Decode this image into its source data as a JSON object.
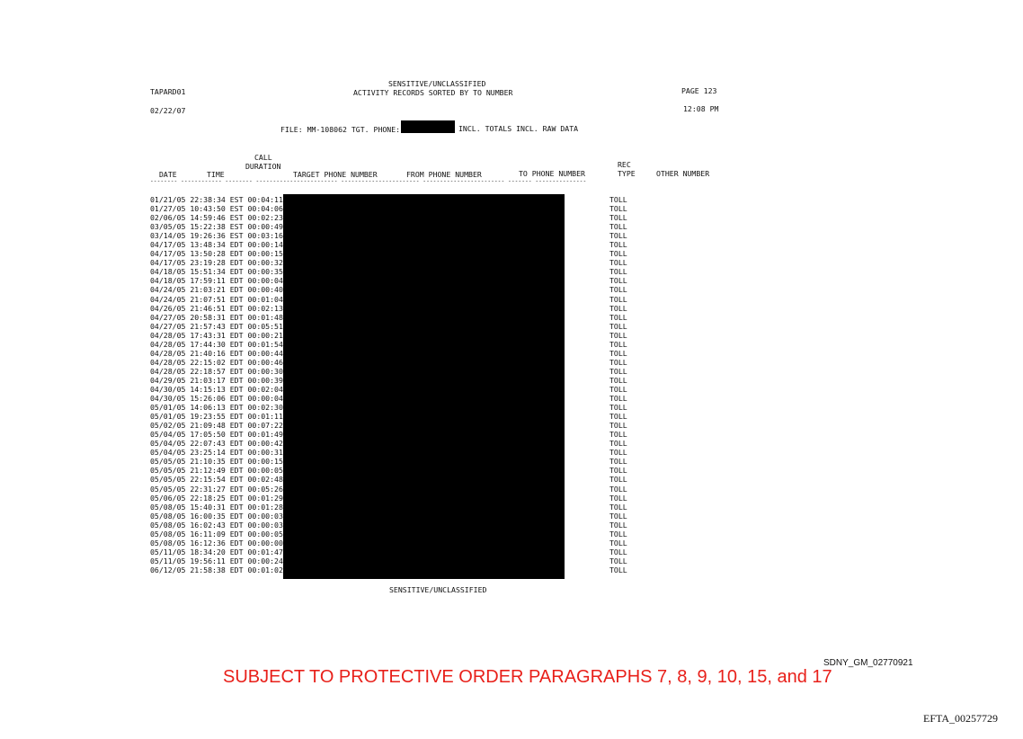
{
  "header": {
    "program_id": "TAPARD01",
    "classification": "SENSITIVE/UNCLASSIFIED",
    "report_title": "ACTIVITY RECORDS SORTED BY TO NUMBER",
    "page": "PAGE 123",
    "date": "02/22/07",
    "time": "12:08 PM",
    "file_label": "FILE: MM-108062 TGT. PHONE:",
    "file_suffix": "INCL. TOTALS INCL. RAW DATA"
  },
  "columns": {
    "date": "DATE",
    "time": "TIME",
    "call": "CALL",
    "duration": "DURATION",
    "target": "TARGET PHONE NUMBER",
    "from": "FROM PHONE NUMBER",
    "to": "TO PHONE NUMBER",
    "rec": "REC",
    "type": "TYPE",
    "other": "OTHER NUMBER",
    "divider": "-------- ------------ -------- ------------------------ ----------------------- ------------------------ ------- ---------------"
  },
  "rows": [
    {
      "date": "01/21/05",
      "time": "22:38:34 EST",
      "duration": "00:04:11",
      "type": "TOLL"
    },
    {
      "date": "01/27/05",
      "time": "10:43:50 EST",
      "duration": "00:04:06",
      "type": "TOLL"
    },
    {
      "date": "02/06/05",
      "time": "14:59:46 EST",
      "duration": "00:02:23",
      "type": "TOLL"
    },
    {
      "date": "03/05/05",
      "time": "15:22:38 EST",
      "duration": "00:00:49",
      "type": "TOLL"
    },
    {
      "date": "03/14/05",
      "time": "19:26:36 EST",
      "duration": "00:03:16",
      "type": "TOLL"
    },
    {
      "date": "04/17/05",
      "time": "13:48:34 EDT",
      "duration": "00:00:14",
      "type": "TOLL"
    },
    {
      "date": "04/17/05",
      "time": "13:50:28 EDT",
      "duration": "00:00:15",
      "type": "TOLL"
    },
    {
      "date": "04/17/05",
      "time": "23:19:28 EDT",
      "duration": "00:00:32",
      "type": "TOLL"
    },
    {
      "date": "04/18/05",
      "time": "15:51:34 EDT",
      "duration": "00:00:35",
      "type": "TOLL"
    },
    {
      "date": "04/18/05",
      "time": "17:59:11 EDT",
      "duration": "00:00:04",
      "type": "TOLL"
    },
    {
      "date": "04/24/05",
      "time": "21:03:21 EDT",
      "duration": "00:00:40",
      "type": "TOLL"
    },
    {
      "date": "04/24/05",
      "time": "21:07:51 EDT",
      "duration": "00:01:04",
      "type": "TOLL"
    },
    {
      "date": "04/26/05",
      "time": "21:46:51 EDT",
      "duration": "00:02:13",
      "type": "TOLL"
    },
    {
      "date": "04/27/05",
      "time": "20:58:31 EDT",
      "duration": "00:01:48",
      "type": "TOLL"
    },
    {
      "date": "04/27/05",
      "time": "21:57:43 EDT",
      "duration": "00:05:51",
      "type": "TOLL"
    },
    {
      "date": "04/28/05",
      "time": "17:43:31 EDT",
      "duration": "00:00:21",
      "type": "TOLL"
    },
    {
      "date": "04/28/05",
      "time": "17:44:30 EDT",
      "duration": "00:01:54",
      "type": "TOLL"
    },
    {
      "date": "04/28/05",
      "time": "21:40:16 EDT",
      "duration": "00:00:44",
      "type": "TOLL"
    },
    {
      "date": "04/28/05",
      "time": "22:15:02 EDT",
      "duration": "00:00:46",
      "type": "TOLL"
    },
    {
      "date": "04/28/05",
      "time": "22:18:57 EDT",
      "duration": "00:00:30",
      "type": "TOLL"
    },
    {
      "date": "04/29/05",
      "time": "21:03:17 EDT",
      "duration": "00:00:39",
      "type": "TOLL"
    },
    {
      "date": "04/30/05",
      "time": "14:15:13 EDT",
      "duration": "00:02:04",
      "type": "TOLL"
    },
    {
      "date": "04/30/05",
      "time": "15:26:06 EDT",
      "duration": "00:00:04",
      "type": "TOLL"
    },
    {
      "date": "05/01/05",
      "time": "14:06:13 EDT",
      "duration": "00:02:30",
      "type": "TOLL"
    },
    {
      "date": "05/01/05",
      "time": "19:23:55 EDT",
      "duration": "00:01:11",
      "type": "TOLL"
    },
    {
      "date": "05/02/05",
      "time": "21:09:48 EDT",
      "duration": "00:07:22",
      "type": "TOLL"
    },
    {
      "date": "05/04/05",
      "time": "17:05:50 EDT",
      "duration": "00:01:49",
      "type": "TOLL"
    },
    {
      "date": "05/04/05",
      "time": "22:07:43 EDT",
      "duration": "00:00:42",
      "type": "TOLL"
    },
    {
      "date": "05/04/05",
      "time": "23:25:14 EDT",
      "duration": "00:00:31",
      "type": "TOLL"
    },
    {
      "date": "05/05/05",
      "time": "21:10:35 EDT",
      "duration": "00:00:15",
      "type": "TOLL"
    },
    {
      "date": "05/05/05",
      "time": "21:12:49 EDT",
      "duration": "00:00:05",
      "type": "TOLL"
    },
    {
      "date": "05/05/05",
      "time": "22:15:54 EDT",
      "duration": "00:02:48",
      "type": "TOLL"
    },
    {
      "date": "05/05/05",
      "time": "22:31:27 EDT",
      "duration": "00:05:26",
      "type": "TOLL"
    },
    {
      "date": "05/06/05",
      "time": "22:18:25 EDT",
      "duration": "00:01:29",
      "type": "TOLL"
    },
    {
      "date": "05/08/05",
      "time": "15:40:31 EDT",
      "duration": "00:01:28",
      "type": "TOLL"
    },
    {
      "date": "05/08/05",
      "time": "16:00:35 EDT",
      "duration": "00:00:03",
      "type": "TOLL"
    },
    {
      "date": "05/08/05",
      "time": "16:02:43 EDT",
      "duration": "00:00:03",
      "type": "TOLL"
    },
    {
      "date": "05/08/05",
      "time": "16:11:09 EDT",
      "duration": "00:00:05",
      "type": "TOLL"
    },
    {
      "date": "05/08/05",
      "time": "16:12:36 EDT",
      "duration": "00:00:00",
      "type": "TOLL"
    },
    {
      "date": "05/11/05",
      "time": "18:34:20 EDT",
      "duration": "00:01:47",
      "type": "TOLL"
    },
    {
      "date": "05/11/05",
      "time": "19:56:11 EDT",
      "duration": "00:00:24",
      "type": "TOLL"
    },
    {
      "date": "06/12/05",
      "time": "21:58:38 EDT",
      "duration": "00:01:02",
      "type": "TOLL"
    }
  ],
  "footer": {
    "classification": "SENSITIVE/UNCLASSIFIED",
    "bates": "SDNY_GM_02770921",
    "protective_order": "SUBJECT TO PROTECTIVE ORDER PARAGRAPHS 7, 8, 9, 10, 15, and 17",
    "efta": "EFTA_00257729"
  }
}
